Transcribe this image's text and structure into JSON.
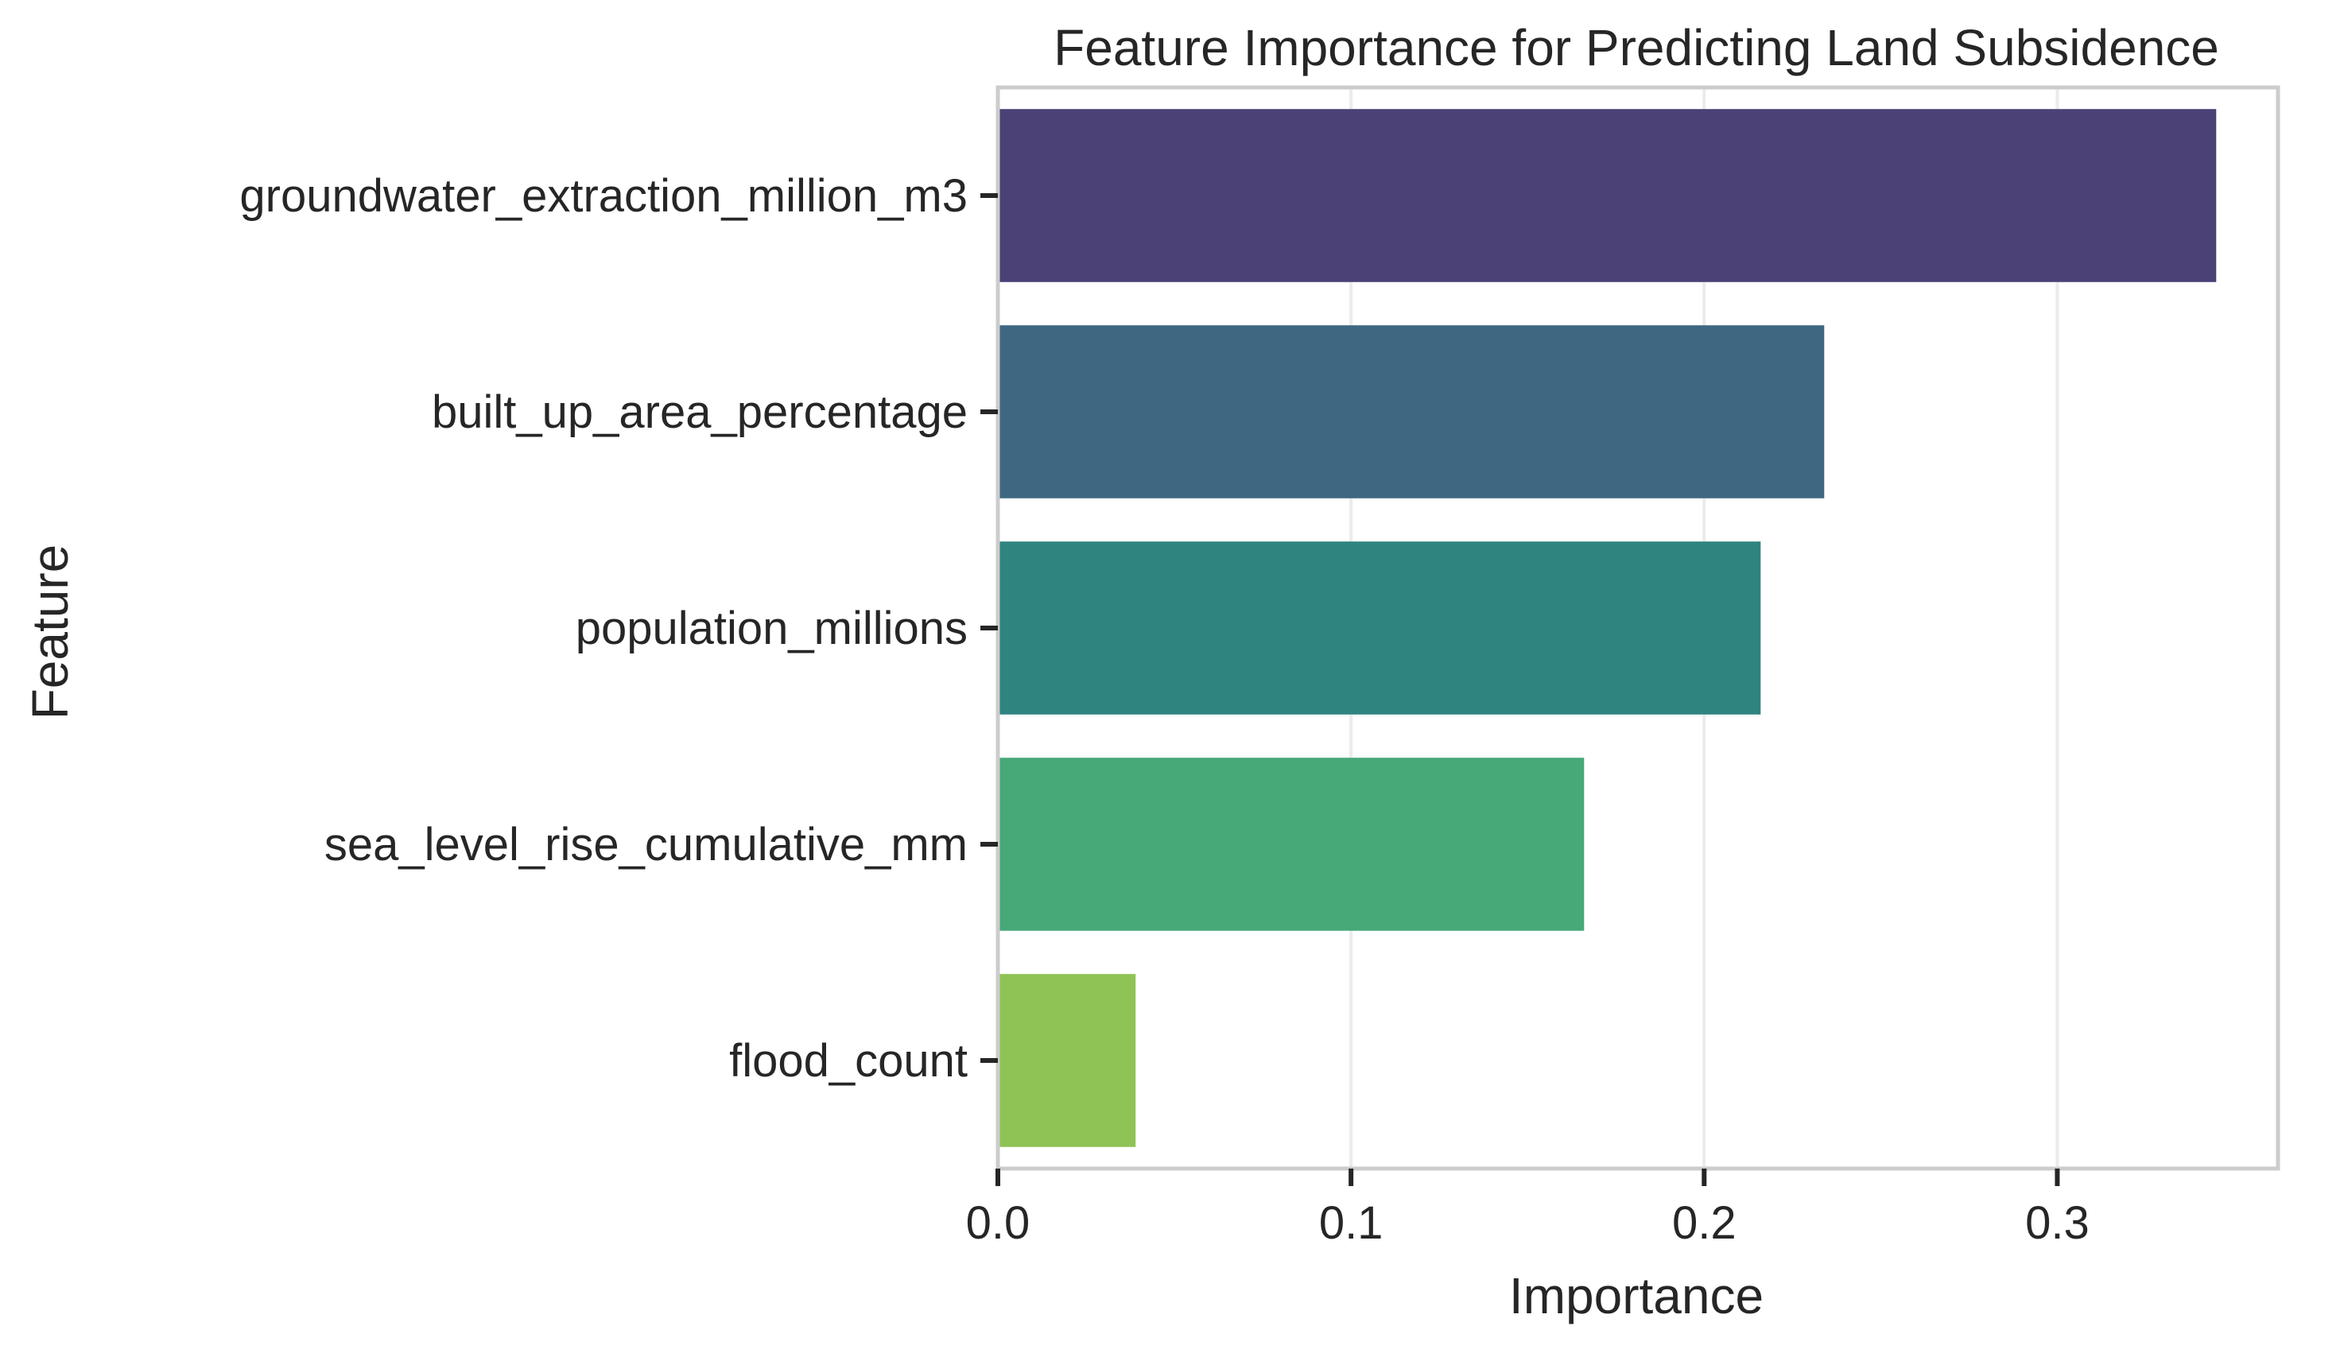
{
  "chart_data": {
    "type": "bar",
    "orientation": "horizontal",
    "title": "Feature Importance for Predicting Land Subsidence",
    "xlabel": "Importance",
    "ylabel": "Feature",
    "categories": [
      "groundwater_extraction_million_m3",
      "built_up_area_percentage",
      "population_millions",
      "sea_level_rise_cumulative_mm",
      "flood_count"
    ],
    "values": [
      0.345,
      0.234,
      0.216,
      0.166,
      0.039
    ],
    "colors": [
      "#4b4177",
      "#3e6782",
      "#2f8480",
      "#47a878",
      "#8fc356"
    ],
    "xlim": [
      0,
      0.3625
    ],
    "xticks": [
      0.0,
      0.1,
      0.2,
      0.3
    ],
    "xtick_labels": [
      "0.0",
      "0.1",
      "0.2",
      "0.3"
    ],
    "grid": "vertical",
    "legend": "none"
  }
}
